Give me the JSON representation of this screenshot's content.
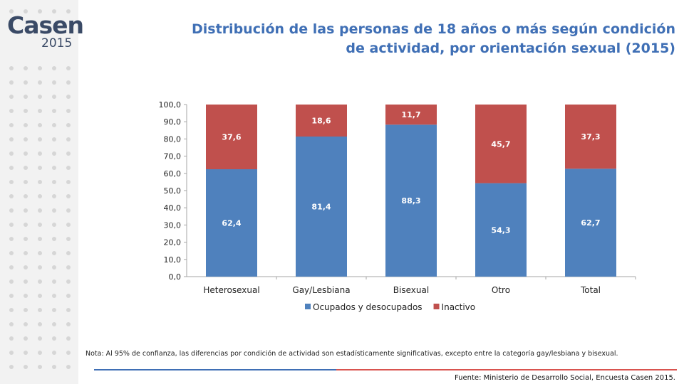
{
  "logo": {
    "word": "Casen",
    "year": "2015"
  },
  "title_line1": "Distribución de las personas de 18 años o más según condición",
  "title_line2": "de actividad, por orientación sexual (2015)",
  "note": "Nota: Al 95% de confianza, las diferencias por condición de actividad son estadísticamente significativas, excepto entre la categoría gay/lesbiana y bisexual.",
  "source": "Fuente: Ministerio de Desarrollo Social, Encuesta Casen 2015.",
  "colors": {
    "accent": "#3f6fb5",
    "series1": "#4f81bd",
    "series2": "#c0504d",
    "sidebar": "#f2f2f2",
    "dots": "#d6d6d6"
  },
  "chart_data": {
    "type": "bar",
    "stacked": true,
    "categories": [
      "Heterosexual",
      "Gay/Lesbiana",
      "Bisexual",
      "Otro",
      "Total"
    ],
    "series": [
      {
        "name": "Ocupados y desocupados",
        "values": [
          62.4,
          81.4,
          88.3,
          54.3,
          62.7
        ],
        "labels": [
          "62,4",
          "81,4",
          "88,3",
          "54,3",
          "62,7"
        ]
      },
      {
        "name": "Inactivo",
        "values": [
          37.6,
          18.6,
          11.7,
          45.7,
          37.3
        ],
        "labels": [
          "37,6",
          "18,6",
          "11,7",
          "45,7",
          "37,3"
        ]
      }
    ],
    "yticks": [
      "0,0",
      "10,0",
      "20,0",
      "30,0",
      "40,0",
      "50,0",
      "60,0",
      "70,0",
      "80,0",
      "90,0",
      "100,0"
    ],
    "ylim": [
      0,
      100
    ],
    "grid": false,
    "legend": "bottom"
  }
}
